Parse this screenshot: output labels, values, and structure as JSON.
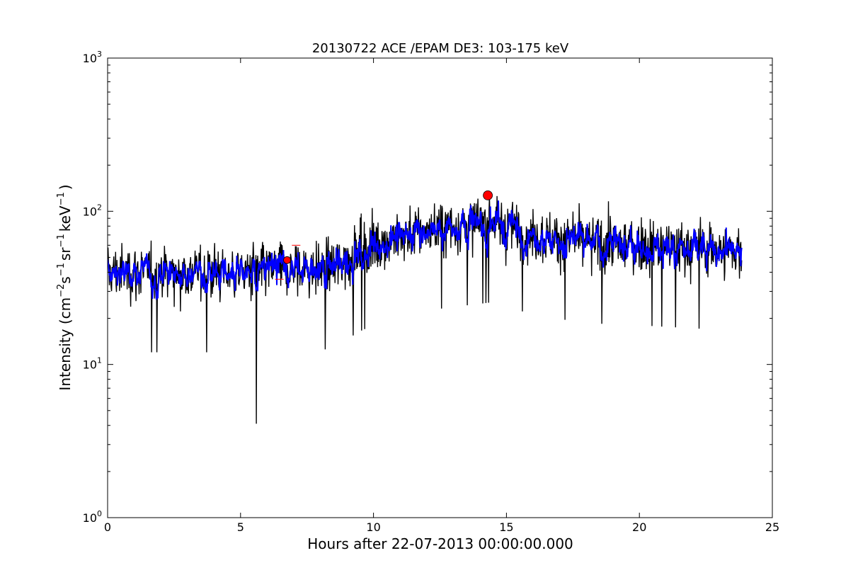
{
  "chart_data": {
    "type": "line",
    "title": "20130722 ACE /EPAM DE3: 103-175 keV",
    "xlabel": "Hours after 22-07-2013 00:00:00.000",
    "ylabel_parts": {
      "intensity": "Intensity (cm",
      "sup1": "−2",
      "s": "s",
      "sup2": "−1",
      "sr": "sr",
      "sup3": "−1",
      "kev": "keV",
      "sup4": "−1",
      "close": ")"
    },
    "xlim": [
      0,
      25
    ],
    "ylim": [
      1,
      1000
    ],
    "yscale": "log",
    "grid": false,
    "x_ticks": [
      0,
      5,
      10,
      15,
      20,
      25
    ],
    "x_tick_labels": [
      "0",
      "5",
      "10",
      "15",
      "20",
      "25"
    ],
    "y_ticks": [
      1,
      10,
      100,
      1000
    ],
    "y_tick_labels": [
      {
        "base": "10",
        "exp": "0"
      },
      {
        "base": "10",
        "exp": "1"
      },
      {
        "base": "10",
        "exp": "2"
      },
      {
        "base": "10",
        "exp": "3"
      }
    ],
    "series_colors": {
      "raw": "#000000",
      "smoothed": "#0000ff",
      "marker": "#ff0000"
    },
    "raw_profile": {
      "x_range": [
        0,
        23.85
      ],
      "sample_step_hours": 0.0167,
      "levels": [
        [
          0,
          40
        ],
        [
          5,
          40
        ],
        [
          8.5,
          42
        ],
        [
          9.5,
          55
        ],
        [
          10.5,
          65
        ],
        [
          12,
          75
        ],
        [
          14.5,
          85
        ],
        [
          16,
          70
        ],
        [
          18,
          62
        ],
        [
          20,
          60
        ],
        [
          23.85,
          55
        ]
      ],
      "spread_decades": 0.15,
      "min_value": 4.1,
      "max_value": 165
    },
    "markers": [
      {
        "x": 6.75,
        "y": 48
      },
      {
        "x": 14.3,
        "y": 127
      }
    ],
    "bracket": {
      "x": [
        6.3,
        7.25
      ],
      "y": [
        36,
        60
      ]
    }
  }
}
